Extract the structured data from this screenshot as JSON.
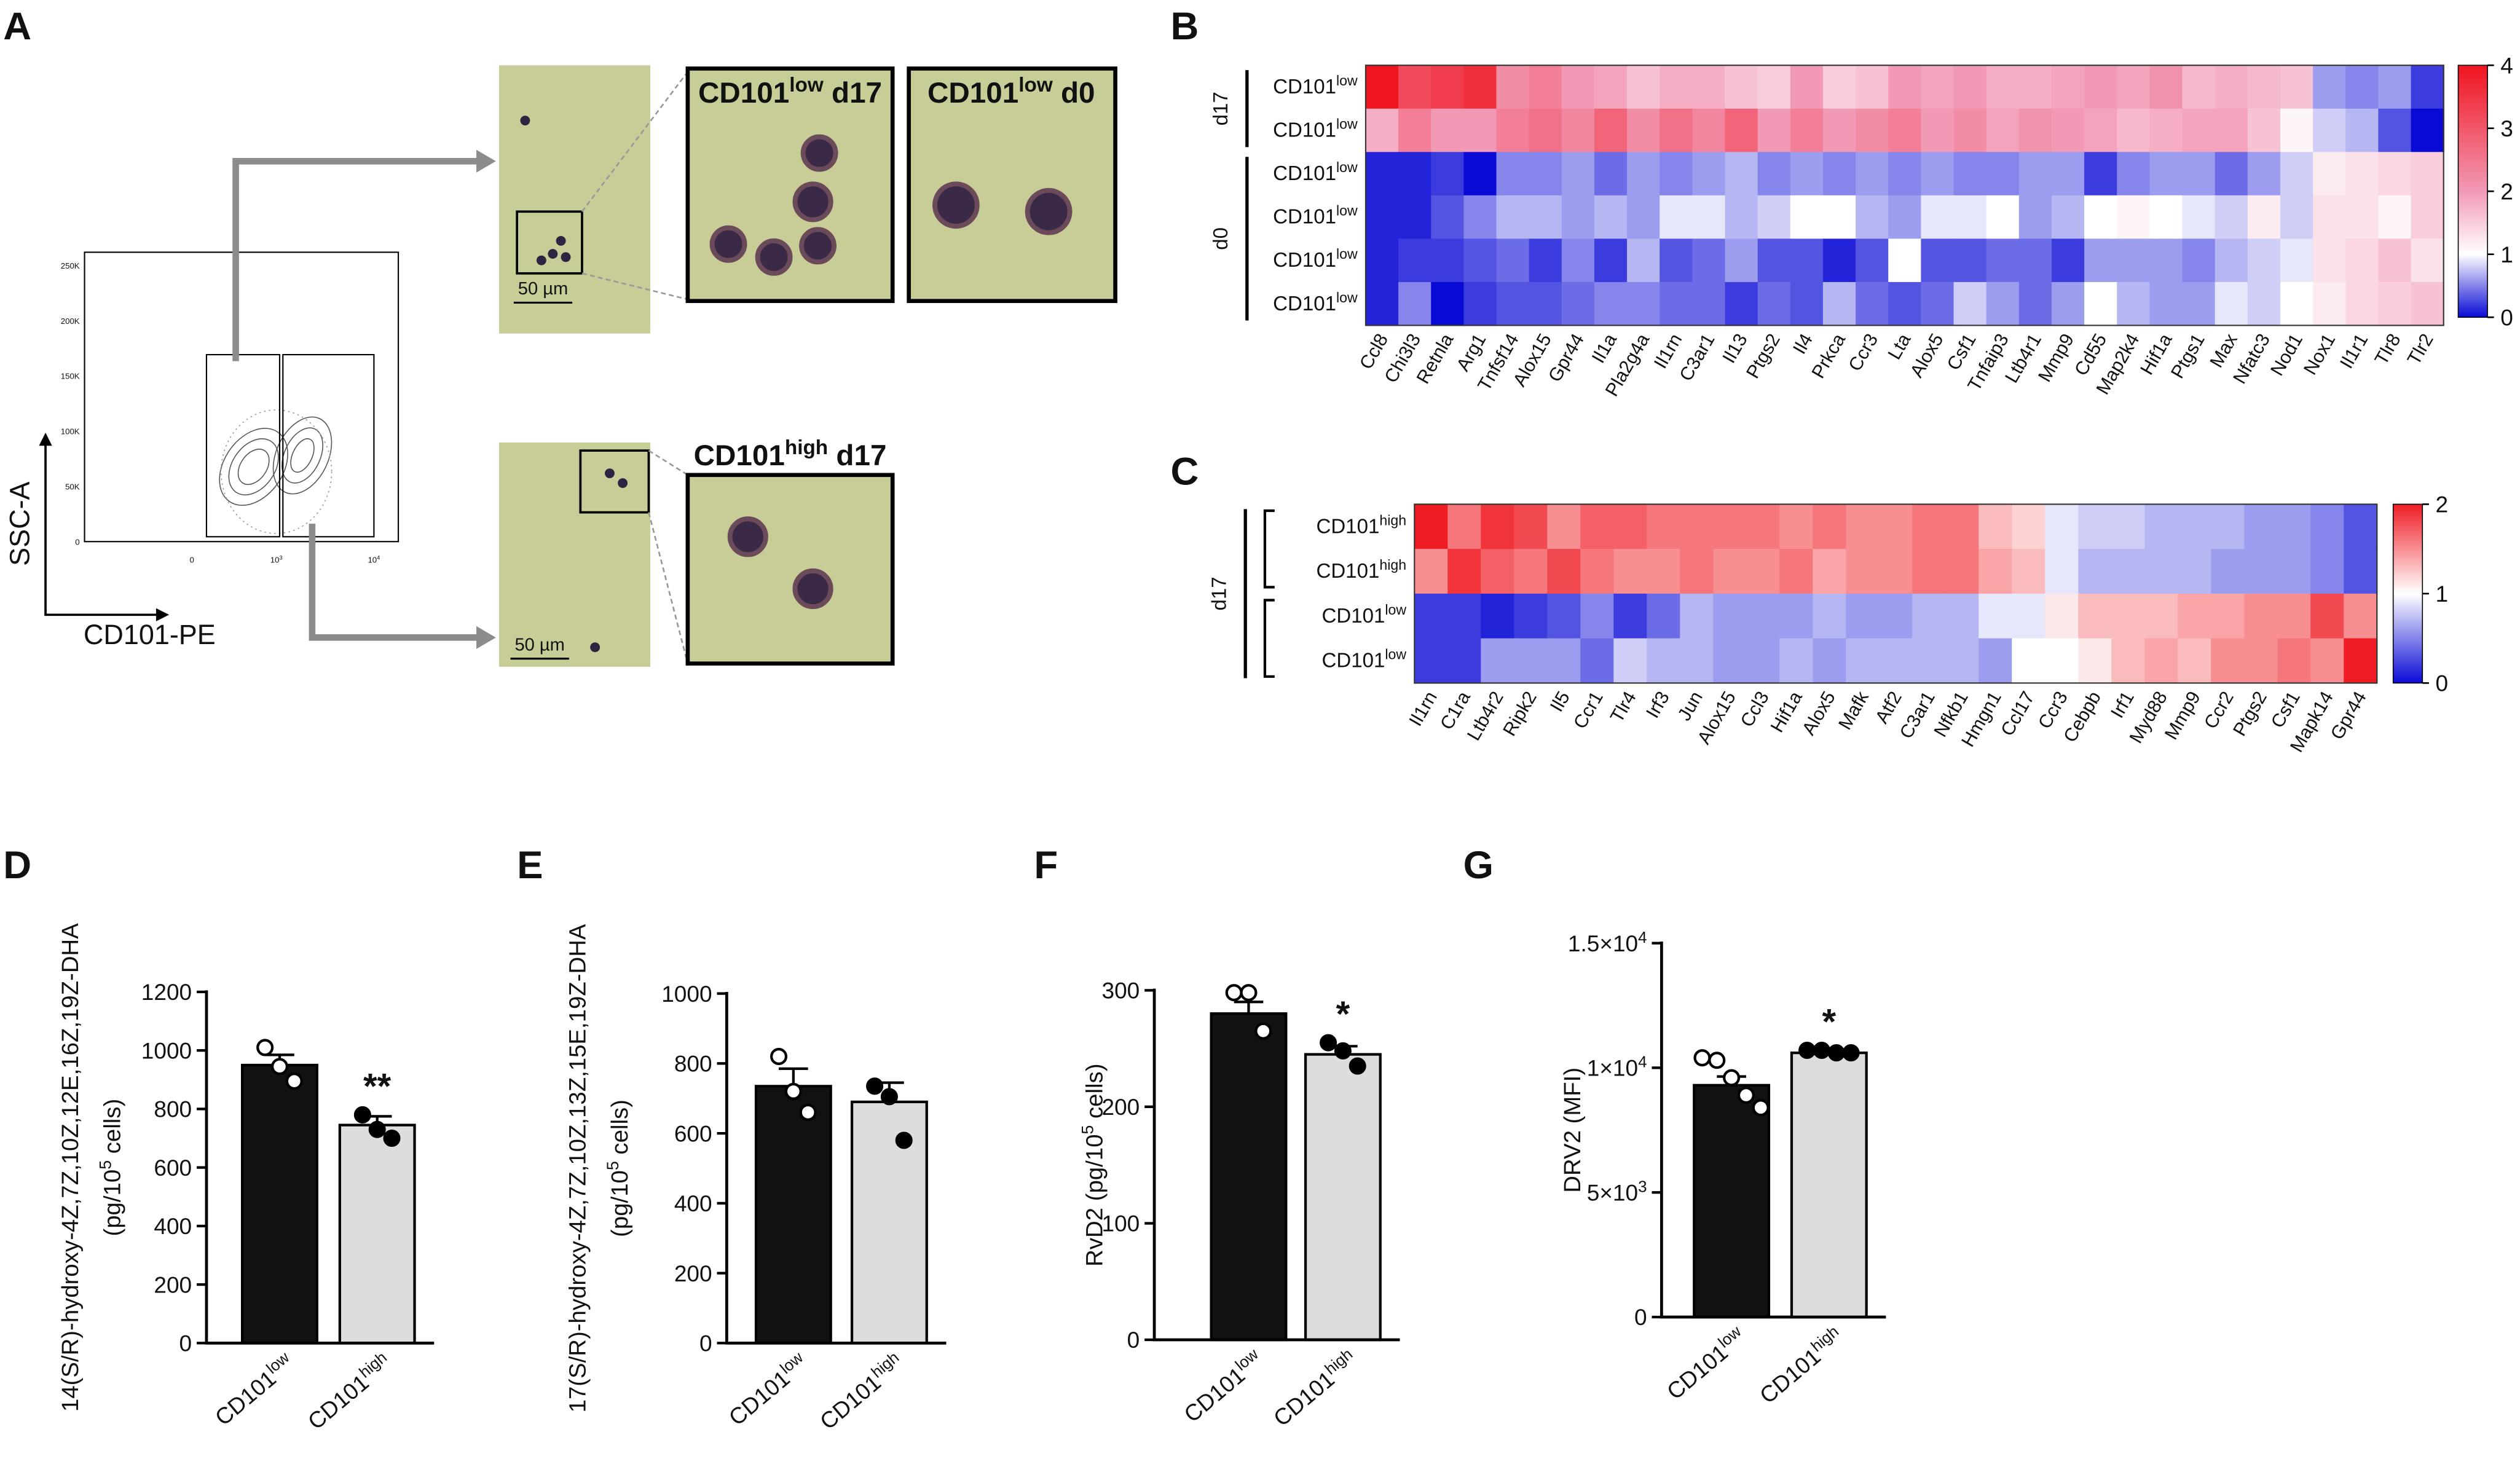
{
  "panel_a": {
    "panel": "A",
    "y_axis_label": "SSC-A",
    "x_axis_label": "CD101-PE",
    "flow_yticks": [
      "250K",
      "200K",
      "150K",
      "100K",
      "50K",
      "0"
    ],
    "flow_xticks": [
      "0",
      [
        "10",
        "3"
      ],
      [
        "10",
        "4"
      ]
    ],
    "image_titles": [
      [
        "CD101",
        "low",
        " d17"
      ],
      [
        "CD101",
        "low",
        " d0"
      ],
      [
        "CD101",
        "high",
        " d17"
      ]
    ],
    "scale_bars": [
      "50 µm",
      "50 µm"
    ]
  },
  "chart_data": [
    {
      "type": "heatmap",
      "panel": "B",
      "columns": [
        "Ccl8",
        "Chi3l3",
        "Retnla",
        "Arg1",
        "Tnfsf14",
        "Alox15",
        "Gpr44",
        "Il1a",
        "Pla2g4a",
        "Il1rn",
        "C3ar1",
        "Il13",
        "Ptgs2",
        "Il4",
        "Prkca",
        "Ccr3",
        "Lta",
        "Alox5",
        "Csf1",
        "Tnfaip3",
        "Ltb4r1",
        "Mmp9",
        "Cd55",
        "Map2k4",
        "Hif1a",
        "Ptgs1",
        "Max",
        "Nfatc3",
        "Nod1",
        "Nox1",
        "Il1r1",
        "Tlr8",
        "Tlr2"
      ],
      "groups": [
        {
          "label": "d17",
          "rows": [
            [
              "CD101",
              "low"
            ],
            [
              "CD101",
              "low"
            ]
          ],
          "values": [
            [
              4.0,
              3.2,
              3.4,
              3.6,
              2.2,
              2.4,
              2.0,
              1.9,
              1.6,
              1.8,
              1.8,
              1.6,
              1.5,
              2.0,
              1.5,
              1.6,
              2.0,
              1.9,
              2.0,
              1.8,
              1.8,
              1.9,
              2.0,
              1.9,
              2.1,
              1.7,
              1.8,
              1.7,
              1.6,
              0.6,
              0.5,
              0.6,
              0.2
            ],
            [
              1.8,
              2.4,
              2.0,
              2.0,
              2.4,
              2.6,
              2.3,
              2.8,
              2.2,
              2.6,
              2.3,
              2.8,
              2.0,
              2.4,
              2.0,
              2.2,
              2.4,
              2.0,
              2.2,
              1.9,
              2.1,
              2.0,
              1.9,
              1.7,
              1.8,
              1.9,
              1.9,
              1.6,
              1.1,
              0.8,
              0.7,
              0.3,
              0.0
            ]
          ]
        },
        {
          "label": "d0",
          "rows": [
            [
              "CD101",
              "low"
            ],
            [
              "CD101",
              "low"
            ],
            [
              "CD101",
              "low"
            ],
            [
              "CD101",
              "low"
            ]
          ],
          "values": [
            [
              0.1,
              0.1,
              0.2,
              0.0,
              0.5,
              0.5,
              0.6,
              0.4,
              0.6,
              0.5,
              0.6,
              0.7,
              0.5,
              0.6,
              0.5,
              0.6,
              0.5,
              0.6,
              0.5,
              0.5,
              0.6,
              0.6,
              0.2,
              0.5,
              0.6,
              0.6,
              0.4,
              0.6,
              0.8,
              1.2,
              1.3,
              1.4,
              1.5
            ],
            [
              0.1,
              0.1,
              0.3,
              0.5,
              0.7,
              0.7,
              0.6,
              0.7,
              0.6,
              0.9,
              0.9,
              0.7,
              0.8,
              1.0,
              1.0,
              0.7,
              0.6,
              0.9,
              0.9,
              1.0,
              0.6,
              0.7,
              1.0,
              1.1,
              1.0,
              0.9,
              0.8,
              1.2,
              0.8,
              1.3,
              1.3,
              1.1,
              1.5
            ],
            [
              0.1,
              0.2,
              0.2,
              0.3,
              0.4,
              0.2,
              0.5,
              0.2,
              0.7,
              0.3,
              0.4,
              0.6,
              0.3,
              0.3,
              0.1,
              0.3,
              1.0,
              0.3,
              0.3,
              0.4,
              0.4,
              0.2,
              0.6,
              0.6,
              0.6,
              0.5,
              0.7,
              0.8,
              0.9,
              1.3,
              1.4,
              1.6,
              1.3
            ],
            [
              0.1,
              0.5,
              0.0,
              0.2,
              0.3,
              0.3,
              0.4,
              0.5,
              0.5,
              0.4,
              0.4,
              0.2,
              0.4,
              0.3,
              0.7,
              0.4,
              0.3,
              0.4,
              0.8,
              0.6,
              0.4,
              0.6,
              1.0,
              0.7,
              0.6,
              0.6,
              0.9,
              0.8,
              1.0,
              1.2,
              1.4,
              1.5,
              1.6
            ]
          ]
        }
      ],
      "zlim": [
        0,
        4
      ],
      "zticks": [
        0,
        1,
        2,
        3,
        4
      ],
      "colorscale": [
        [
          0,
          "#0a0ad6"
        ],
        [
          1,
          "#ffffff"
        ],
        [
          2,
          "#f29ab5"
        ],
        [
          4,
          "#f0141e"
        ]
      ]
    },
    {
      "type": "heatmap",
      "panel": "C",
      "columns": [
        "Il1rn",
        "C1ra",
        "Ltb4r2",
        "Ripk2",
        "Il5",
        "Ccr1",
        "Tlr4",
        "Irf3",
        "Jun",
        "Alox15",
        "Ccl3",
        "Hif1a",
        "Alox5",
        "Mafk",
        "Atf2",
        "C3ar1",
        "Nfkb1",
        "Hmgn1",
        "Ccl17",
        "Ccr3",
        "Cebpb",
        "Irf1",
        "Myd88",
        "Mmp9",
        "Ccr2",
        "Ptgs2",
        "Csf1",
        "Mapk14",
        "Gpr44"
      ],
      "groups": [
        {
          "label": "d17",
          "rows": [
            [
              "CD101",
              "high"
            ],
            [
              "CD101",
              "high"
            ],
            [
              "CD101",
              "low"
            ],
            [
              "CD101",
              "low"
            ]
          ],
          "values": [
            [
              2.0,
              1.6,
              1.9,
              1.8,
              1.5,
              1.7,
              1.7,
              1.6,
              1.6,
              1.6,
              1.6,
              1.5,
              1.6,
              1.5,
              1.5,
              1.6,
              1.6,
              1.3,
              1.2,
              0.9,
              0.8,
              0.8,
              0.7,
              0.7,
              0.7,
              0.6,
              0.6,
              0.5,
              0.3
            ],
            [
              1.5,
              1.9,
              1.7,
              1.6,
              1.8,
              1.6,
              1.5,
              1.5,
              1.6,
              1.5,
              1.5,
              1.6,
              1.4,
              1.5,
              1.5,
              1.6,
              1.6,
              1.4,
              1.3,
              0.9,
              0.7,
              0.7,
              0.7,
              0.7,
              0.6,
              0.6,
              0.6,
              0.5,
              0.3
            ],
            [
              0.2,
              0.2,
              0.1,
              0.2,
              0.3,
              0.5,
              0.2,
              0.4,
              0.7,
              0.6,
              0.6,
              0.6,
              0.7,
              0.6,
              0.6,
              0.7,
              0.7,
              0.9,
              0.9,
              1.1,
              1.3,
              1.3,
              1.3,
              1.4,
              1.4,
              1.5,
              1.5,
              1.8,
              1.5
            ],
            [
              0.2,
              0.2,
              0.6,
              0.6,
              0.6,
              0.4,
              0.8,
              0.7,
              0.7,
              0.6,
              0.6,
              0.7,
              0.6,
              0.7,
              0.7,
              0.7,
              0.7,
              0.6,
              1.0,
              1.0,
              1.1,
              1.3,
              1.4,
              1.3,
              1.5,
              1.5,
              1.6,
              1.5,
              2.0
            ]
          ]
        }
      ],
      "zlim": [
        0,
        2
      ],
      "zticks": [
        0,
        1,
        2
      ],
      "colorscale": [
        [
          0,
          "#0a0ad6"
        ],
        [
          1,
          "#ffffff"
        ],
        [
          2,
          "#ef1c24"
        ]
      ]
    },
    {
      "type": "bar",
      "panel": "D",
      "ylabel": [
        "14(S/R)-hydroxy-4Z,7Z,10Z,12E,16Z,19Z-DHA",
        [
          "(pg/10",
          "5",
          " cells)"
        ]
      ],
      "categories": [
        [
          "CD101",
          "low"
        ],
        [
          "CD101",
          "high"
        ]
      ],
      "values": [
        950,
        745
      ],
      "errors": [
        35,
        30
      ],
      "points": [
        [
          1010,
          945,
          895
        ],
        [
          780,
          730,
          700
        ]
      ],
      "colors": [
        "#111111",
        "#dcdedd"
      ],
      "point_fills": [
        "#ffffff",
        "#000000"
      ],
      "significance": "**",
      "ylim": [
        0,
        1200
      ],
      "yticks": [
        0,
        200,
        400,
        600,
        800,
        1000,
        1200
      ]
    },
    {
      "type": "bar",
      "panel": "E",
      "ylabel": [
        "17(S/R)-hydroxy-4Z,7Z,10Z,13Z,15E,19Z-DHA",
        [
          "(pg/10",
          "5",
          " cells)"
        ]
      ],
      "categories": [
        [
          "CD101",
          "low"
        ],
        [
          "CD101",
          "high"
        ]
      ],
      "values": [
        735,
        690
      ],
      "errors": [
        50,
        55
      ],
      "points": [
        [
          820,
          720,
          660
        ],
        [
          735,
          705,
          580
        ]
      ],
      "colors": [
        "#111111",
        "#dcdedd"
      ],
      "point_fills": [
        "#ffffff",
        "#000000"
      ],
      "ylim": [
        0,
        1000
      ],
      "yticks": [
        0,
        200,
        400,
        600,
        800,
        1000
      ]
    },
    {
      "type": "bar",
      "panel": "F",
      "ylabel": [
        [
          "RvD2 (pg/10",
          "5",
          " cells)"
        ]
      ],
      "categories": [
        [
          "CD101",
          "low"
        ],
        [
          "CD101",
          "high"
        ]
      ],
      "values": [
        280,
        245
      ],
      "errors": [
        10,
        7
      ],
      "points": [
        [
          298,
          298,
          265
        ],
        [
          255,
          248,
          235
        ]
      ],
      "colors": [
        "#111111",
        "#dcdedd"
      ],
      "point_fills": [
        "#ffffff",
        "#000000"
      ],
      "significance": "*",
      "ylim": [
        0,
        300
      ],
      "yticks": [
        0,
        100,
        200,
        300
      ]
    },
    {
      "type": "bar",
      "panel": "G",
      "ylabel": [
        "DRV2 (MFI)"
      ],
      "categories": [
        [
          "CD101",
          "low"
        ],
        [
          "CD101",
          "high"
        ]
      ],
      "values": [
        9300,
        10600
      ],
      "errors": [
        350,
        100
      ],
      "points": [
        [
          10400,
          10300,
          9600,
          8900,
          8400
        ],
        [
          10700,
          10700,
          10600,
          10600
        ]
      ],
      "colors": [
        "#111111",
        "#dcdedd"
      ],
      "point_fills": [
        "#ffffff",
        "#000000"
      ],
      "significance": "*",
      "ylim": [
        0,
        15000
      ],
      "yticks": [
        0,
        {
          "value": 5000,
          "label": [
            "5×10",
            "3"
          ]
        },
        {
          "value": 10000,
          "label": [
            "1×10",
            "4"
          ]
        },
        {
          "value": 15000,
          "label": [
            "1.5×10",
            "4"
          ]
        }
      ]
    }
  ]
}
